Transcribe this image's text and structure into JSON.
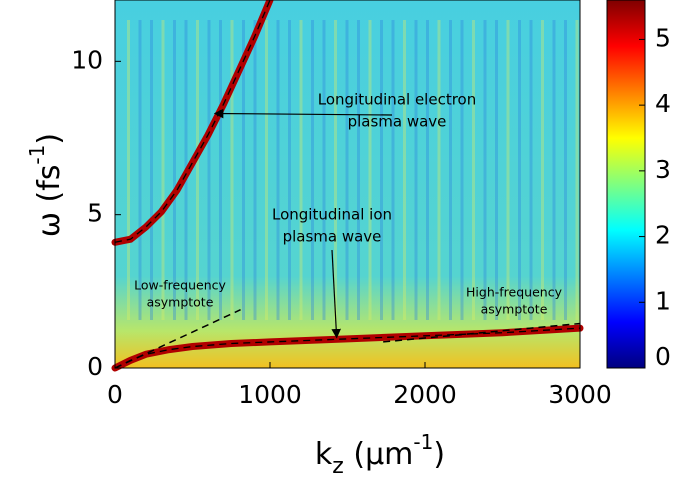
{
  "chart_data": {
    "type": "line",
    "xlabel": [
      "k",
      "z",
      " (μm",
      "-1",
      ")"
    ],
    "ylabel": [
      "ω",
      " (fs",
      "-1",
      ")"
    ],
    "xlim": [
      0,
      3000
    ],
    "xticks": [
      0,
      1000,
      2000,
      3000
    ],
    "ylim": [
      0,
      12
    ],
    "yticks": [
      0,
      5,
      10
    ],
    "series": [
      {
        "x": [
          0,
          100,
          200,
          300,
          400,
          500,
          600,
          700,
          800,
          900,
          1000
        ],
        "values": [
          4.1,
          4.2,
          4.6,
          5.1,
          5.8,
          6.7,
          7.6,
          8.6,
          9.7,
          10.8,
          12
        ],
        "color": "#b00000",
        "style": "solid"
      },
      {
        "x": [
          0,
          100,
          200,
          350,
          500,
          750,
          1000,
          1500,
          2000,
          2500,
          3000
        ],
        "values": [
          0,
          0.25,
          0.45,
          0.6,
          0.7,
          0.8,
          0.85,
          0.95,
          1.05,
          1.15,
          1.3
        ],
        "color": "#b00000",
        "style": "solid"
      },
      {
        "x": [
          0,
          810
        ],
        "values": [
          0,
          1.9
        ],
        "color": "#000000",
        "style": "dashed"
      },
      {
        "x": [
          1730,
          3000
        ],
        "values": [
          0.85,
          1.45
        ],
        "color": "#000000",
        "style": "dashed"
      }
    ],
    "annotations": [
      {
        "lines": [
          "Longitudinal electron",
          "plasma wave"
        ],
        "x": 645,
        "y": 8.3
      },
      {
        "lines": [
          "Longitudinal ion",
          "plasma wave"
        ],
        "x": 1430,
        "y": 1.0
      },
      {
        "lines": [
          "Low-frequency",
          "asymptote"
        ]
      },
      {
        "lines": [
          "High-frequency",
          "asymptote"
        ]
      }
    ],
    "colorbar": {
      "lim": [
        0,
        5.6
      ],
      "ticks": [
        0,
        1,
        2,
        3,
        4,
        5
      ],
      "colormap": "jet"
    }
  }
}
